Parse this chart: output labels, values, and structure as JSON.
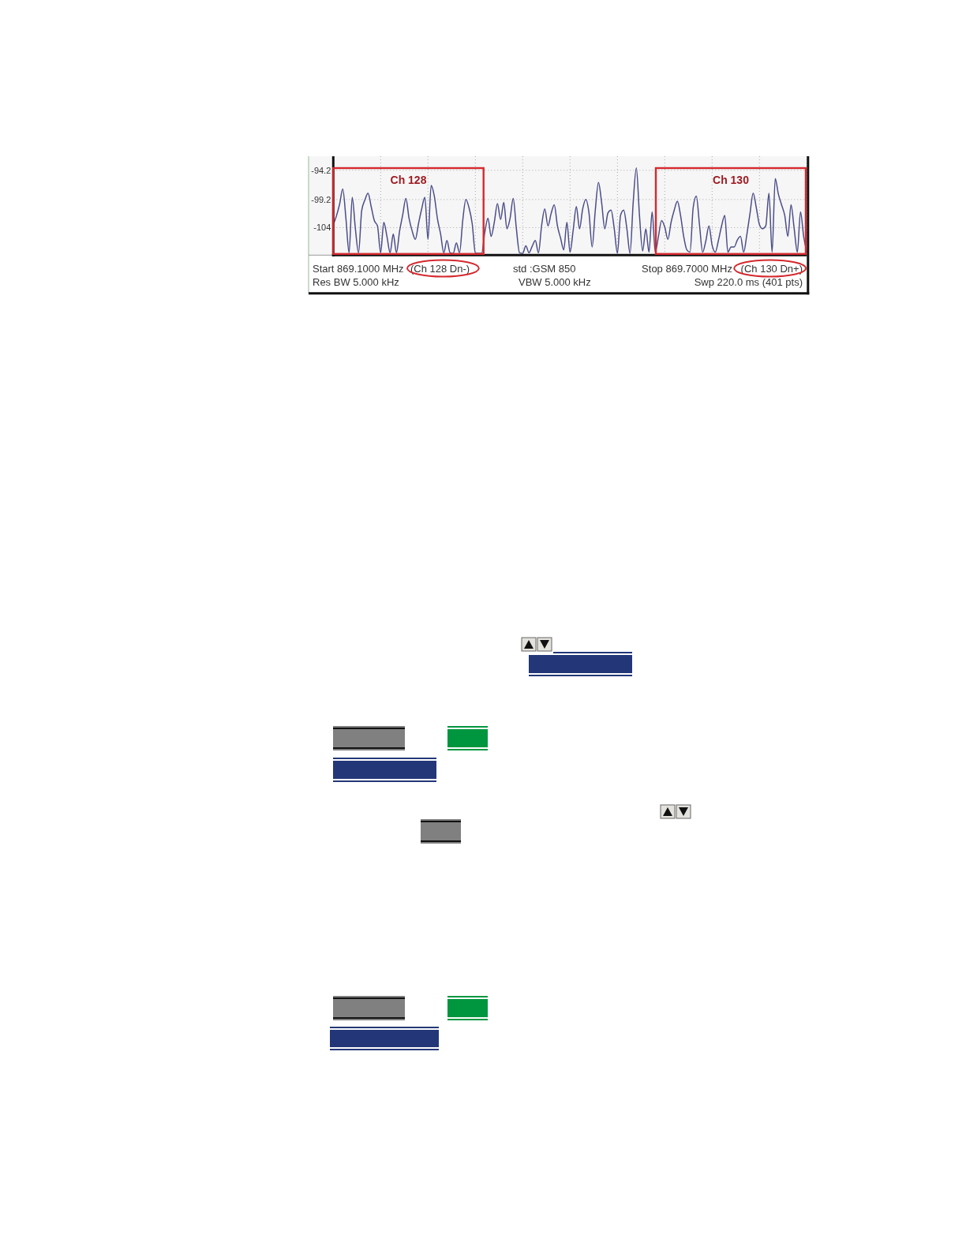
{
  "chart_data": {
    "type": "line",
    "color": "#4b4d8a",
    "categories": [
      null,
      null,
      null,
      null,
      null,
      null,
      null,
      null,
      null,
      null,
      null,
      null,
      null,
      null,
      null,
      null,
      null,
      null,
      null,
      null,
      null,
      null,
      null,
      null,
      null,
      null,
      null,
      null,
      null,
      null,
      null,
      null,
      null,
      null,
      null,
      null,
      null,
      null,
      null,
      null,
      null,
      null,
      null,
      null,
      null,
      null,
      null,
      null,
      null,
      null,
      null,
      null,
      null,
      null,
      null,
      null,
      null,
      null,
      null,
      null,
      null,
      null,
      null,
      null,
      null,
      null,
      null,
      null,
      null,
      null,
      null,
      null,
      null,
      null,
      null,
      null,
      null,
      null,
      null,
      null,
      null,
      null,
      null,
      null,
      null,
      null,
      null,
      null,
      null,
      null,
      null,
      null,
      null,
      null,
      null,
      null,
      null,
      null,
      null,
      null,
      null,
      null,
      null,
      null,
      null,
      null,
      null,
      null,
      null,
      null,
      null,
      null,
      null,
      null,
      null,
      null,
      null,
      null,
      null,
      null,
      null,
      null,
      null,
      null,
      null,
      null,
      null,
      null,
      null,
      null,
      null,
      null,
      null,
      null,
      null,
      null,
      null,
      null,
      null,
      null,
      null,
      null,
      null,
      null,
      null,
      null,
      null,
      null,
      null,
      null,
      null
    ],
    "values": [
      -103.5,
      -102.0,
      -100.0,
      -97.4,
      -102.4,
      -108.3,
      -98.8,
      -104.2,
      -108.3,
      -101.1,
      -99.3,
      -98.1,
      -100.4,
      -102.8,
      -103.7,
      -108.3,
      -103.1,
      -105.5,
      -108.3,
      -105.1,
      -108.3,
      -104.6,
      -101.8,
      -99.0,
      -102.4,
      -104.6,
      -106.0,
      -103.3,
      -100.8,
      -98.8,
      -106.0,
      -96.8,
      -98.6,
      -102.5,
      -105.1,
      -108.3,
      -106.2,
      -108.3,
      -108.4,
      -106.6,
      -108.3,
      -102.8,
      -99.2,
      -100.6,
      -103.3,
      -108.3,
      -108.4,
      -108.4,
      -104.8,
      -102.4,
      -105.5,
      -103.1,
      -99.9,
      -102.6,
      -99.7,
      -104.2,
      -102.4,
      -99.0,
      -104.2,
      -108.3,
      -108.4,
      -107.1,
      -108.3,
      -107.2,
      -106.2,
      -108.3,
      -103.6,
      -100.8,
      -103.7,
      -101.6,
      -100.1,
      -103.7,
      -105.8,
      -107.8,
      -103.1,
      -108.2,
      -104.4,
      -100.4,
      -104.2,
      -100.8,
      -99.2,
      -101.5,
      -107.3,
      -101.0,
      -96.3,
      -99.7,
      -104.2,
      -101.5,
      -101.0,
      -104.2,
      -108.4,
      -101.9,
      -101.0,
      -104.2,
      -108.4,
      -99.7,
      -93.8,
      -102.0,
      -108.0,
      -104.2,
      -108.2,
      -101.3,
      -108.2,
      -105.5,
      -102.8,
      -103.9,
      -106.0,
      -103.1,
      -101.0,
      -99.5,
      -101.9,
      -105.5,
      -107.8,
      -108.2,
      -100.6,
      -98.6,
      -103.5,
      -108.2,
      -106.3,
      -103.7,
      -107.0,
      -108.2,
      -106.2,
      -103.7,
      -101.9,
      -108.2,
      -107.3,
      -107.3,
      -106.1,
      -105.5,
      -108.2,
      -105.2,
      -101.6,
      -98.1,
      -100.6,
      -103.5,
      -104.2,
      -103.7,
      -98.1,
      -108.2,
      -95.6,
      -98.3,
      -100.1,
      -101.9,
      -105.5,
      -100.1,
      -104.2,
      -108.2,
      -101.3,
      -105.5,
      -108.2
    ],
    "ylim": [
      -108.7,
      -91.8
    ],
    "yticks": [
      -104,
      -99.2,
      -94.2
    ],
    "tick_labels": "y",
    "grid": true,
    "annotations": [
      "Ch 128",
      "Ch 130",
      "Start 869.1000 MHz",
      "(Ch 128 Dn-)",
      "std :GSM 850",
      "Stop 869.7000 MHz",
      "(Ch 130 Dn+)",
      "Res BW 5.000 kHz",
      "VBW 5.000 kHz",
      "Swp 220.0 ms (401 pts)"
    ]
  }
}
